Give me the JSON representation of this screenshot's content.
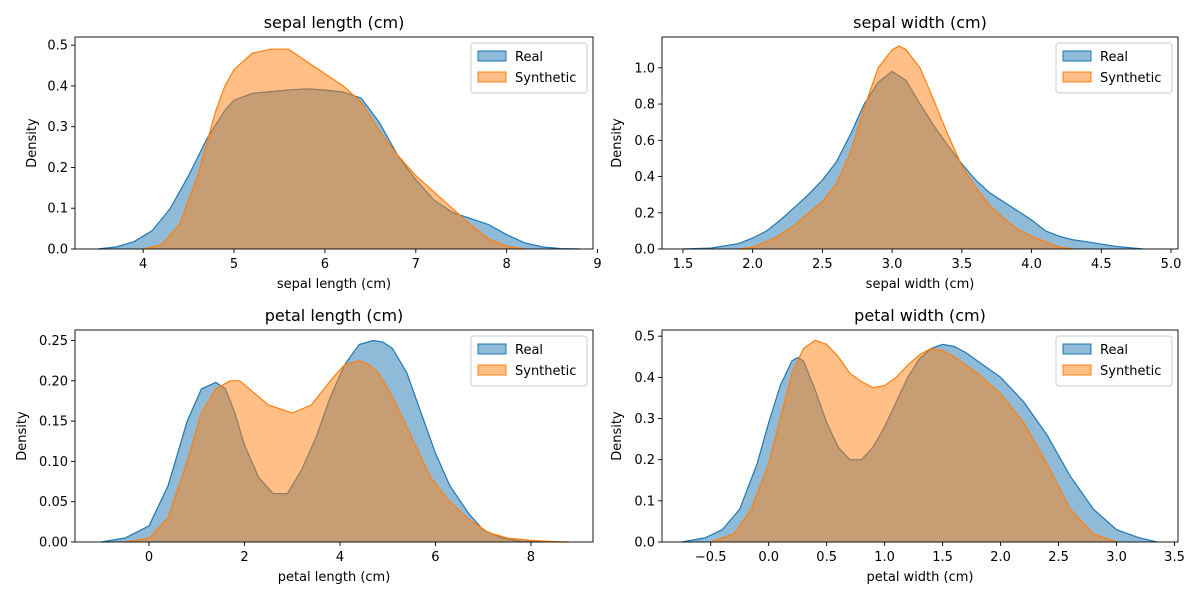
{
  "colors": {
    "real_fill": "#1f77b4",
    "real_line": "#1f77b4",
    "synthetic_fill": "#ff7f0e",
    "synthetic_line": "#ff7f0e",
    "fill_opacity": 0.5
  },
  "chart_data": [
    {
      "type": "area",
      "title": "sepal length (cm)",
      "xlabel": "sepal length (cm)",
      "ylabel": "Density",
      "xlim": [
        3.25,
        8.95
      ],
      "ylim": [
        0,
        0.52
      ],
      "xticks": [
        4,
        5,
        6,
        7,
        8,
        9
      ],
      "xtick_labels": [
        "4",
        "5",
        "6",
        "7",
        "8",
        "9"
      ],
      "yticks": [
        0,
        0.1,
        0.2,
        0.3,
        0.4,
        0.5
      ],
      "ytick_labels": [
        "0.0",
        "0.1",
        "0.2",
        "0.3",
        "0.4",
        "0.5"
      ],
      "legend": "top-right",
      "grid": false,
      "series": [
        {
          "name": "Real",
          "x": [
            3.5,
            3.7,
            3.9,
            4.1,
            4.3,
            4.5,
            4.7,
            4.9,
            5.0,
            5.2,
            5.4,
            5.6,
            5.8,
            6.0,
            6.2,
            6.4,
            6.6,
            6.8,
            7.0,
            7.2,
            7.4,
            7.6,
            7.8,
            8.0,
            8.2,
            8.4,
            8.6,
            8.8
          ],
          "values": [
            0.0,
            0.005,
            0.018,
            0.045,
            0.1,
            0.18,
            0.27,
            0.34,
            0.365,
            0.382,
            0.386,
            0.39,
            0.393,
            0.39,
            0.385,
            0.37,
            0.31,
            0.23,
            0.17,
            0.12,
            0.09,
            0.075,
            0.06,
            0.035,
            0.015,
            0.005,
            0.001,
            0.0
          ]
        },
        {
          "name": "Synthetic",
          "x": [
            4.0,
            4.2,
            4.4,
            4.6,
            4.8,
            4.9,
            5.0,
            5.2,
            5.4,
            5.6,
            5.8,
            6.0,
            6.2,
            6.4,
            6.6,
            6.8,
            7.0,
            7.2,
            7.4,
            7.6,
            7.8,
            8.0,
            8.2
          ],
          "values": [
            0.0,
            0.01,
            0.06,
            0.18,
            0.34,
            0.4,
            0.44,
            0.48,
            0.49,
            0.49,
            0.46,
            0.43,
            0.4,
            0.36,
            0.29,
            0.23,
            0.18,
            0.14,
            0.1,
            0.06,
            0.025,
            0.007,
            0.0
          ]
        }
      ]
    },
    {
      "type": "area",
      "title": "sepal width (cm)",
      "xlabel": "sepal width (cm)",
      "ylabel": "Density",
      "xlim": [
        1.35,
        5.05
      ],
      "ylim": [
        0,
        1.17
      ],
      "xticks": [
        1.5,
        2.0,
        2.5,
        3.0,
        3.5,
        4.0,
        4.5,
        5.0
      ],
      "xtick_labels": [
        "1.5",
        "2.0",
        "2.5",
        "3.0",
        "3.5",
        "4.0",
        "4.5",
        "5.0"
      ],
      "yticks": [
        0,
        0.2,
        0.4,
        0.6,
        0.8,
        1.0
      ],
      "ytick_labels": [
        "0.0",
        "0.2",
        "0.4",
        "0.6",
        "0.8",
        "1.0"
      ],
      "legend": "top-right",
      "grid": false,
      "series": [
        {
          "name": "Real",
          "x": [
            1.5,
            1.7,
            1.9,
            2.0,
            2.1,
            2.2,
            2.3,
            2.4,
            2.5,
            2.6,
            2.7,
            2.8,
            2.9,
            3.0,
            3.1,
            3.2,
            3.3,
            3.4,
            3.5,
            3.6,
            3.7,
            3.8,
            3.9,
            4.0,
            4.1,
            4.2,
            4.3,
            4.4,
            4.6,
            4.8
          ],
          "values": [
            0.0,
            0.005,
            0.03,
            0.06,
            0.1,
            0.16,
            0.23,
            0.3,
            0.38,
            0.48,
            0.63,
            0.8,
            0.92,
            0.98,
            0.93,
            0.8,
            0.68,
            0.57,
            0.47,
            0.38,
            0.31,
            0.26,
            0.21,
            0.16,
            0.1,
            0.07,
            0.05,
            0.04,
            0.015,
            0.0
          ]
        },
        {
          "name": "Synthetic",
          "x": [
            1.9,
            2.0,
            2.1,
            2.2,
            2.3,
            2.4,
            2.5,
            2.6,
            2.7,
            2.8,
            2.9,
            3.0,
            3.05,
            3.1,
            3.2,
            3.3,
            3.4,
            3.5,
            3.6,
            3.7,
            3.8,
            3.9,
            4.0,
            4.1,
            4.2,
            4.3
          ],
          "values": [
            0.0,
            0.01,
            0.04,
            0.08,
            0.13,
            0.2,
            0.26,
            0.36,
            0.53,
            0.78,
            1.0,
            1.1,
            1.12,
            1.1,
            1.0,
            0.82,
            0.63,
            0.46,
            0.34,
            0.24,
            0.17,
            0.11,
            0.07,
            0.04,
            0.01,
            0.0
          ]
        }
      ]
    },
    {
      "type": "area",
      "title": "petal length (cm)",
      "xlabel": "petal length (cm)",
      "ylabel": "Density",
      "xlim": [
        -1.55,
        9.3
      ],
      "ylim": [
        0,
        0.263
      ],
      "xticks": [
        0,
        2,
        4,
        6,
        8
      ],
      "xtick_labels": [
        "0",
        "2",
        "4",
        "6",
        "8"
      ],
      "yticks": [
        0,
        0.05,
        0.1,
        0.15,
        0.2,
        0.25
      ],
      "ytick_labels": [
        "0.00",
        "0.05",
        "0.10",
        "0.15",
        "0.20",
        "0.25"
      ],
      "legend": "top-right",
      "grid": false,
      "series": [
        {
          "name": "Real",
          "x": [
            -1.0,
            -0.5,
            0.0,
            0.4,
            0.8,
            1.1,
            1.4,
            1.6,
            1.8,
            2.0,
            2.3,
            2.6,
            2.9,
            3.2,
            3.5,
            3.8,
            4.1,
            4.4,
            4.7,
            4.9,
            5.1,
            5.4,
            5.7,
            6.0,
            6.3,
            6.7,
            7.0,
            7.4,
            7.8,
            8.2
          ],
          "values": [
            0.0,
            0.005,
            0.02,
            0.07,
            0.15,
            0.19,
            0.198,
            0.19,
            0.16,
            0.12,
            0.08,
            0.06,
            0.06,
            0.09,
            0.13,
            0.18,
            0.22,
            0.245,
            0.25,
            0.248,
            0.24,
            0.21,
            0.16,
            0.11,
            0.07,
            0.035,
            0.015,
            0.005,
            0.001,
            0.0
          ]
        },
        {
          "name": "Synthetic",
          "x": [
            -0.5,
            0.0,
            0.4,
            0.8,
            1.1,
            1.4,
            1.7,
            1.9,
            2.1,
            2.5,
            3.0,
            3.4,
            3.8,
            4.1,
            4.4,
            4.6,
            4.8,
            5.1,
            5.5,
            5.9,
            6.3,
            6.7,
            7.1,
            7.5,
            8.0,
            8.5,
            8.8
          ],
          "values": [
            0.0,
            0.005,
            0.03,
            0.1,
            0.16,
            0.19,
            0.2,
            0.2,
            0.19,
            0.17,
            0.16,
            0.17,
            0.2,
            0.22,
            0.225,
            0.22,
            0.21,
            0.18,
            0.13,
            0.08,
            0.05,
            0.028,
            0.012,
            0.005,
            0.002,
            0.0005,
            0.0
          ]
        }
      ]
    },
    {
      "type": "area",
      "title": "petal width (cm)",
      "xlabel": "petal width (cm)",
      "ylabel": "Density",
      "xlim": [
        -0.92,
        3.53
      ],
      "ylim": [
        0,
        0.515
      ],
      "xticks": [
        -0.5,
        0.0,
        0.5,
        1.0,
        1.5,
        2.0,
        2.5,
        3.0,
        3.5
      ],
      "xtick_labels": [
        "−0.5",
        "0.0",
        "0.5",
        "1.0",
        "1.5",
        "2.0",
        "2.5",
        "3.0",
        "3.5"
      ],
      "yticks": [
        0,
        0.1,
        0.2,
        0.3,
        0.4,
        0.5
      ],
      "ytick_labels": [
        "0.0",
        "0.1",
        "0.2",
        "0.3",
        "0.4",
        "0.5"
      ],
      "legend": "top-right",
      "grid": false,
      "series": [
        {
          "name": "Real",
          "x": [
            -0.75,
            -0.55,
            -0.4,
            -0.25,
            -0.1,
            0.0,
            0.1,
            0.2,
            0.25,
            0.3,
            0.4,
            0.5,
            0.6,
            0.7,
            0.8,
            0.9,
            1.0,
            1.1,
            1.2,
            1.3,
            1.4,
            1.5,
            1.6,
            1.7,
            1.8,
            1.9,
            2.0,
            2.2,
            2.4,
            2.6,
            2.8,
            3.0,
            3.2,
            3.35
          ],
          "values": [
            0.0,
            0.01,
            0.03,
            0.08,
            0.19,
            0.29,
            0.38,
            0.44,
            0.448,
            0.44,
            0.37,
            0.29,
            0.23,
            0.2,
            0.2,
            0.23,
            0.28,
            0.34,
            0.4,
            0.445,
            0.47,
            0.48,
            0.475,
            0.46,
            0.44,
            0.42,
            0.4,
            0.34,
            0.26,
            0.16,
            0.08,
            0.03,
            0.01,
            0.0
          ]
        },
        {
          "name": "Synthetic",
          "x": [
            -0.5,
            -0.3,
            -0.15,
            0.0,
            0.1,
            0.2,
            0.3,
            0.4,
            0.5,
            0.6,
            0.7,
            0.8,
            0.9,
            1.0,
            1.1,
            1.2,
            1.3,
            1.4,
            1.5,
            1.6,
            1.8,
            2.0,
            2.2,
            2.4,
            2.6,
            2.8,
            3.0
          ],
          "values": [
            0.0,
            0.02,
            0.08,
            0.19,
            0.3,
            0.41,
            0.47,
            0.49,
            0.48,
            0.45,
            0.41,
            0.39,
            0.375,
            0.38,
            0.4,
            0.43,
            0.455,
            0.47,
            0.465,
            0.45,
            0.41,
            0.36,
            0.29,
            0.19,
            0.08,
            0.02,
            0.0
          ]
        }
      ]
    }
  ],
  "legend_labels": [
    "Real",
    "Synthetic"
  ]
}
